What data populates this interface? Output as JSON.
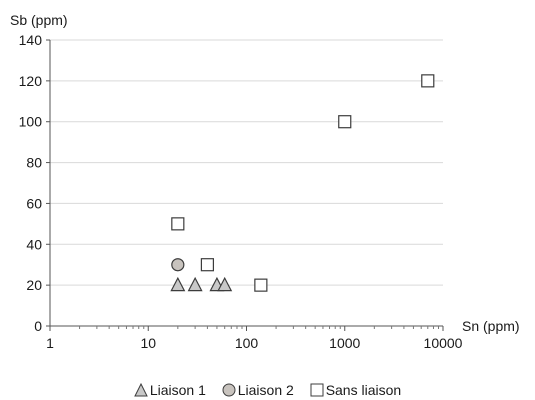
{
  "chart_data": {
    "type": "scatter",
    "title": "",
    "xlabel": "Sn (ppm)",
    "ylabel": "Sb (ppm)",
    "x_scale": "log",
    "xlim": [
      1,
      10000
    ],
    "ylim": [
      0,
      140
    ],
    "x_ticks": [
      "1",
      "10",
      "100",
      "1000",
      "10000"
    ],
    "y_ticks": [
      "0",
      "20",
      "40",
      "60",
      "80",
      "100",
      "120",
      "140"
    ],
    "grid": "horizontal",
    "legend_position": "bottom",
    "series": [
      {
        "name": "Liaison 1",
        "marker": "triangle",
        "color": "#c8c8c8",
        "points": [
          {
            "x": 20,
            "y": 20
          },
          {
            "x": 30,
            "y": 20
          },
          {
            "x": 50,
            "y": 20
          },
          {
            "x": 60,
            "y": 20
          }
        ]
      },
      {
        "name": "Liaison 2",
        "marker": "circle",
        "color": "#c8c3be",
        "points": [
          {
            "x": 20,
            "y": 30
          }
        ]
      },
      {
        "name": "Sans liaison",
        "marker": "square",
        "color": "#ffffff",
        "points": [
          {
            "x": 20,
            "y": 50
          },
          {
            "x": 40,
            "y": 30
          },
          {
            "x": 140,
            "y": 20
          },
          {
            "x": 1000,
            "y": 100
          },
          {
            "x": 7000,
            "y": 120
          }
        ]
      }
    ]
  }
}
